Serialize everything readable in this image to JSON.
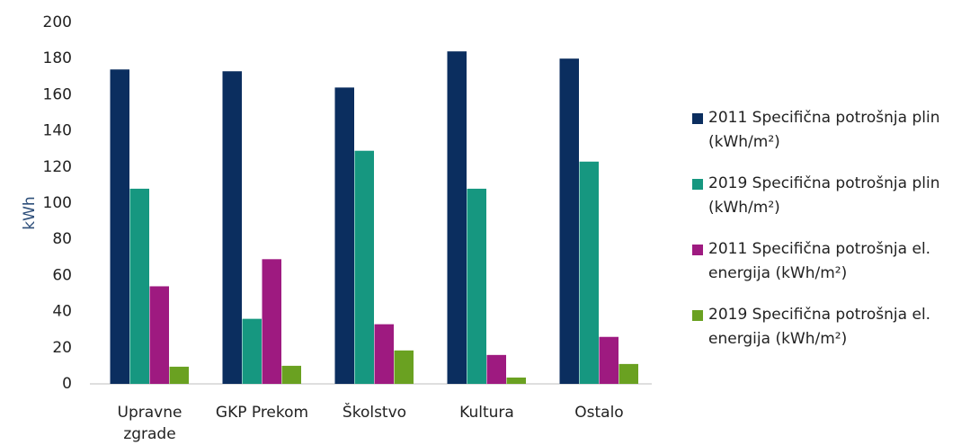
{
  "chart_data": {
    "type": "bar",
    "y_label": "kWh",
    "categories": [
      "Upravne zgrade",
      "GKP Prekom",
      "Školstvo",
      "Kultura",
      "Ostalo"
    ],
    "series": [
      {
        "name": "2011 Specifična potrošnja plin (kWh/m²)",
        "color": "#0b2e5f",
        "values": [
          174,
          173,
          164,
          184,
          180
        ]
      },
      {
        "name": "2019 Specifična potrošnja plin (kWh/m²)",
        "color": "#169780",
        "values": [
          108,
          36,
          129,
          108,
          123
        ]
      },
      {
        "name": "2011 Specifična potrošnja el. energija (kWh/m²)",
        "color": "#9e1a80",
        "values": [
          54,
          69,
          33,
          16,
          26
        ]
      },
      {
        "name": "2019 Specifična potrošnja el. energija (kWh/m²)",
        "color": "#6aa121",
        "values": [
          9.5,
          10,
          18.5,
          3.5,
          11
        ]
      }
    ],
    "ylim": [
      0,
      200
    ],
    "yticks": [
      0,
      20,
      40,
      60,
      80,
      100,
      120,
      140,
      160,
      180,
      200
    ],
    "grid": false,
    "legend": "right"
  }
}
